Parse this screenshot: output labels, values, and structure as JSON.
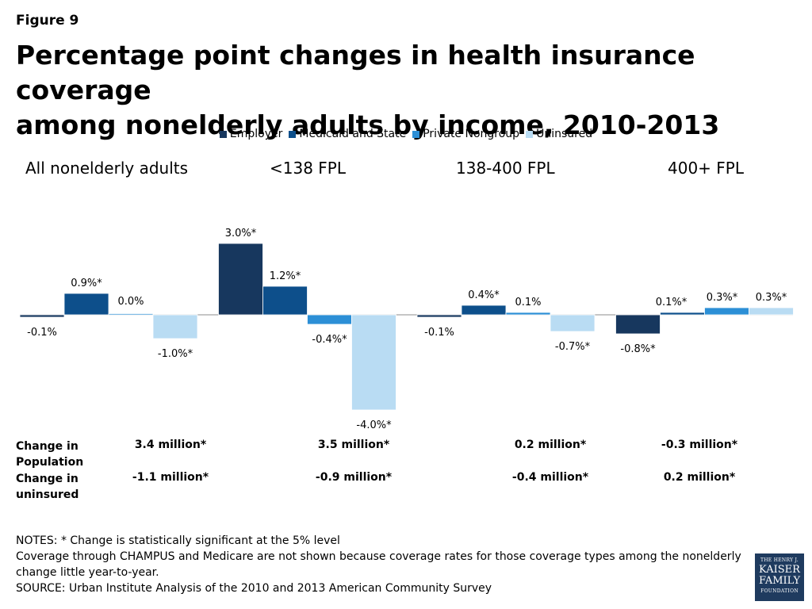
{
  "figure_label": "Figure 9",
  "title_line1": "Percentage point changes in health insurance coverage",
  "title_line2": "among nonelderly adults by income, 2010-2013",
  "colors": {
    "Employer": "#17375e",
    "Medicaid and State": "#0d4f8b",
    "Private Nongroup": "#2c8fd6",
    "Uninsured": "#b9dcf3"
  },
  "chart_data": {
    "type": "bar",
    "categories": [
      "All nonelderly adults",
      "<138 FPL",
      "138-400 FPL",
      "400+ FPL"
    ],
    "series": [
      {
        "name": "Employer",
        "values": [
          -0.1,
          3.0,
          -0.1,
          -0.8
        ],
        "labels": [
          "-0.1%",
          "3.0%*",
          "-0.1%",
          "-0.8%*"
        ]
      },
      {
        "name": "Medicaid and State",
        "values": [
          0.9,
          1.2,
          0.4,
          0.1
        ],
        "labels": [
          "0.9%*",
          "1.2%*",
          "0.4%*",
          "0.1%*"
        ]
      },
      {
        "name": "Private Nongroup",
        "values": [
          0.0,
          -0.4,
          0.1,
          0.3
        ],
        "labels": [
          "0.0%",
          "-0.4%*",
          "0.1%",
          "0.3%*"
        ]
      },
      {
        "name": "Uninsured",
        "values": [
          -1.0,
          -4.0,
          -0.7,
          0.3
        ],
        "labels": [
          "-1.0%*",
          "-4.0%*",
          "-0.7%*",
          "0.3%*"
        ]
      }
    ],
    "legend_position": "top",
    "grid": false,
    "ylim": [
      -4,
      3
    ]
  },
  "table": {
    "rows": [
      {
        "label": "Change in Population",
        "values": [
          "3.4 million*",
          "3.5 million*",
          "0.2 million*",
          "-0.3 million*"
        ]
      },
      {
        "label": "Change in uninsured",
        "values": [
          "-1.1 million*",
          "-0.9 million*",
          "-0.4 million*",
          "0.2 million*"
        ]
      }
    ]
  },
  "notes": {
    "line1": "NOTES: * Change is statistically significant at the 5% level",
    "line2": "Coverage through CHAMPUS and Medicare are not shown because coverage rates for those coverage types among the nonelderly change little year-to-year.",
    "line3": "SOURCE: Urban Institute Analysis of the 2010 and 2013 American Community Survey"
  },
  "logo": {
    "line1": "THE HENRY J.",
    "line2": "KAISER",
    "line3": "FAMILY",
    "line4": "FOUNDATION"
  }
}
